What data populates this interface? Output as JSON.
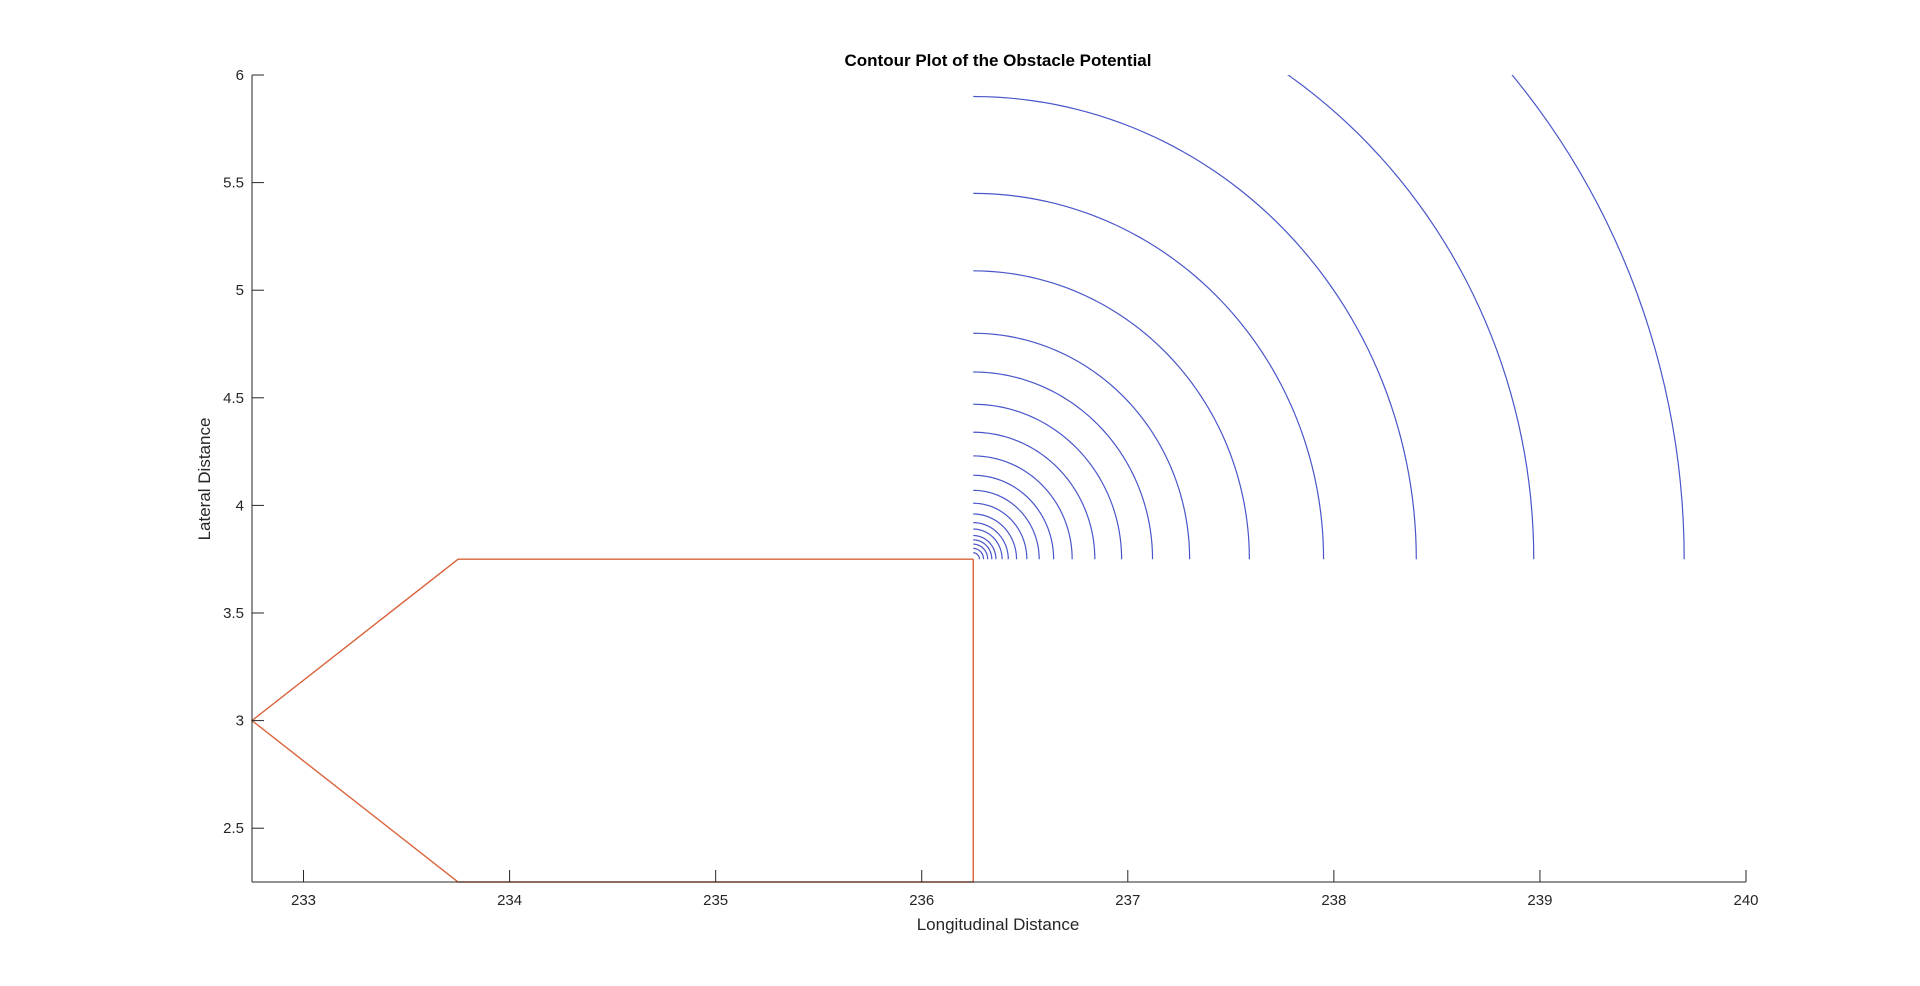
{
  "chart_data": {
    "type": "contour",
    "title": "Contour Plot of the Obstacle Potential",
    "xlabel": "Longitudinal Distance",
    "ylabel": "Lateral Distance",
    "xlim": [
      232.75,
      240
    ],
    "ylim": [
      2.25,
      6
    ],
    "xticks": [
      "233",
      "234",
      "235",
      "236",
      "237",
      "238",
      "239",
      "240"
    ],
    "yticks": [
      "2.5",
      "3",
      "3.5",
      "4",
      "4.5",
      "5",
      "5.5",
      "6"
    ],
    "grid": false,
    "legend": "none",
    "contour_center": [
      236.25,
      3.75
    ],
    "contour_radii": [
      0.03,
      0.05,
      0.07,
      0.09,
      0.11,
      0.14,
      0.17,
      0.21,
      0.26,
      0.32,
      0.39,
      0.48,
      0.59,
      0.72,
      0.87,
      1.05,
      1.34,
      1.7,
      2.15,
      2.72,
      3.45
    ],
    "contour_color": "#4a56c9",
    "obstacle_polygon": {
      "x": [
        236.25,
        233.75,
        232.75,
        233.75,
        236.25,
        236.25
      ],
      "y": [
        3.75,
        3.75,
        3.0,
        2.25,
        2.25,
        3.75
      ],
      "color": "#d9633b"
    }
  }
}
